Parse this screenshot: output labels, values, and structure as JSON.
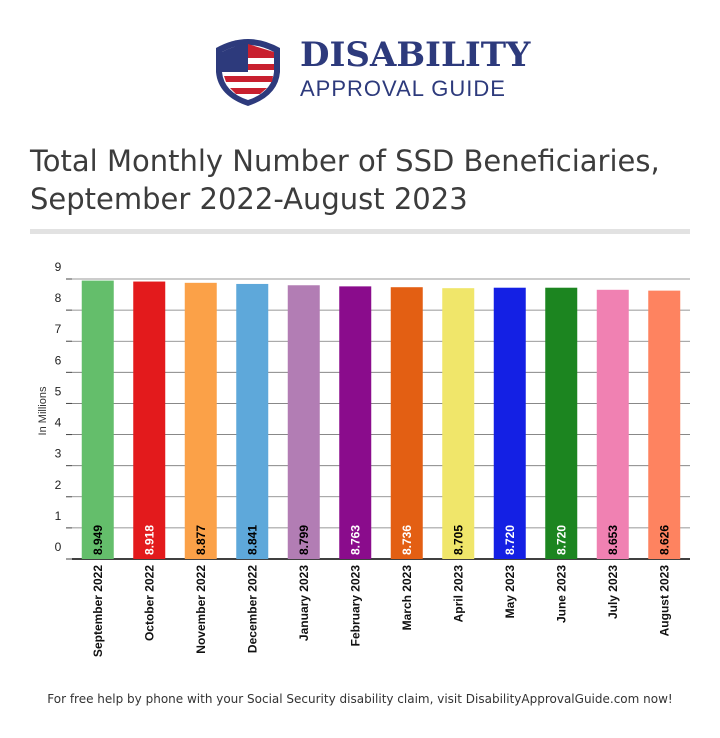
{
  "logo": {
    "title": "DISABILITY",
    "subtitle": "APPROVAL GUIDE"
  },
  "chart_data": {
    "type": "bar",
    "title": "Total Monthly Number of SSD Beneficiaries, September 2022-August 2023",
    "y_label": "In Millions",
    "categories": [
      "September 2022",
      "October 2022",
      "November 2022",
      "December 2022",
      "January 2023",
      "February 2023",
      "March 2023",
      "April 2023",
      "May 2023",
      "June 2023",
      "July 2023",
      "August 2023"
    ],
    "values": [
      8.949,
      8.918,
      8.877,
      8.841,
      8.799,
      8.763,
      8.736,
      8.705,
      8.72,
      8.72,
      8.653,
      8.626
    ],
    "value_labels": [
      "8.949",
      "8.918",
      "8.877",
      "8.841",
      "8.799",
      "8.763",
      "8.736",
      "8.705",
      "8.720",
      "8.720",
      "8.653",
      "8.626"
    ],
    "colors": [
      "#64be6b",
      "#e31a1c",
      "#fba148",
      "#5ea8da",
      "#b27db4",
      "#8a0c8c",
      "#e35f13",
      "#f0e66a",
      "#1420e4",
      "#1c8520",
      "#f081b2",
      "#fe8360"
    ],
    "value_label_colors": [
      "#000000",
      "#ffffff",
      "#000000",
      "#000000",
      "#000000",
      "#ffffff",
      "#ffffff",
      "#000000",
      "#ffffff",
      "#ffffff",
      "#000000",
      "#000000"
    ],
    "ylim": [
      0,
      9
    ],
    "yticks": [
      0,
      1,
      2,
      3,
      4,
      5,
      6,
      7,
      8,
      9
    ],
    "grid": true
  },
  "footer": "For free help by phone with your Social Security disability claim, visit DisabilityApprovalGuide.com now!"
}
